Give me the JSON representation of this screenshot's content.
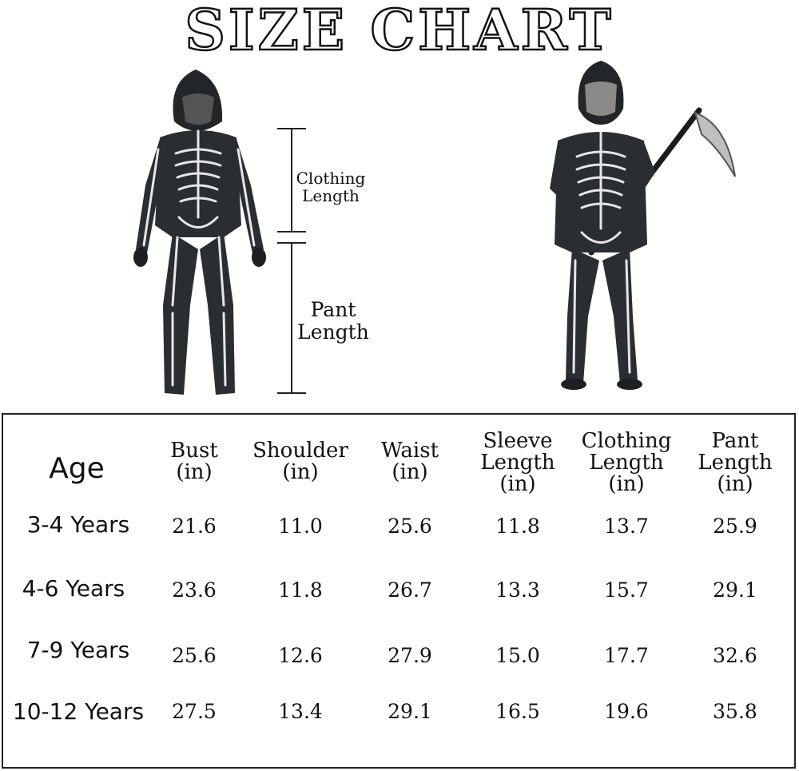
{
  "title": "SIZE CHART",
  "labels": {
    "clothing_length": [
      "Clothing",
      "Length"
    ],
    "pant_length": [
      "Pant",
      "Length"
    ]
  },
  "table": {
    "headers": [
      {
        "lines": [
          "Age"
        ]
      },
      {
        "lines": [
          "Bust",
          "(in)"
        ]
      },
      {
        "lines": [
          "Shoulder",
          "(in)"
        ]
      },
      {
        "lines": [
          "Waist",
          "(in)"
        ]
      },
      {
        "lines": [
          "Sleeve",
          "Length",
          "(in)"
        ]
      },
      {
        "lines": [
          "Clothing",
          "Length",
          "(in)"
        ]
      },
      {
        "lines": [
          "Pant",
          "Length",
          "(in)"
        ]
      }
    ],
    "rows": [
      {
        "age": "3-4 Years",
        "values": [
          "21.6",
          "11.0",
          "25.6",
          "11.8",
          "13.7",
          "25.9"
        ]
      },
      {
        "age": "4-6 Years",
        "values": [
          "23.6",
          "11.8",
          "26.7",
          "13.3",
          "15.7",
          "29.1"
        ]
      },
      {
        "age": "7-9 Years",
        "values": [
          "25.6",
          "12.6",
          "27.9",
          "15.0",
          "17.7",
          "32.6"
        ]
      },
      {
        "age": "10-12 Years",
        "values": [
          "27.5",
          "13.4",
          "29.1",
          "16.5",
          "19.6",
          "35.8"
        ]
      }
    ]
  }
}
